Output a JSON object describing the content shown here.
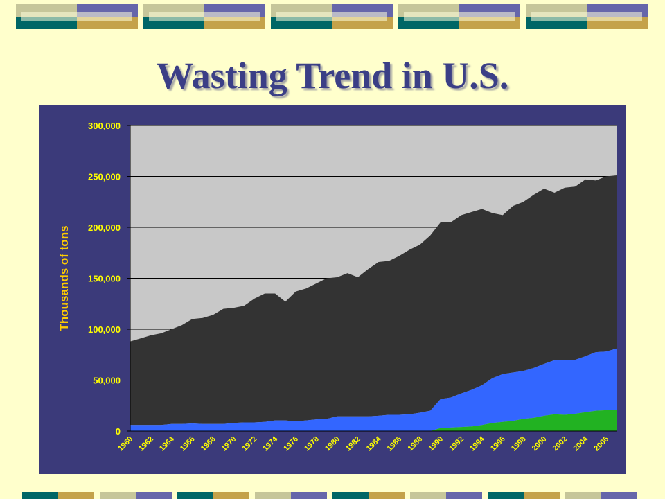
{
  "slide": {
    "title": "Wasting Trend in U.S."
  },
  "colors": {
    "background": "#ffffcc",
    "title": "#3b3f86",
    "panel": "#3b3a7a",
    "plot_area": "#c8c8c8",
    "series_top": "#333333",
    "series_mid": "#3366ff",
    "series_low": "#22b222",
    "tick_text": "#ffff00",
    "axis_label": "#ffcc00"
  },
  "chart_data": {
    "type": "area",
    "stacked": true,
    "title": "",
    "xlabel": "",
    "ylabel": "Thousands of tons",
    "ylim": [
      0,
      300000
    ],
    "yticks": [
      "0",
      "50,000",
      "100,000",
      "150,000",
      "200,000",
      "250,000",
      "300,000"
    ],
    "x": [
      1960,
      1961,
      1962,
      1963,
      1964,
      1965,
      1966,
      1967,
      1968,
      1969,
      1970,
      1971,
      1972,
      1973,
      1974,
      1975,
      1976,
      1977,
      1978,
      1979,
      1980,
      1981,
      1982,
      1983,
      1984,
      1985,
      1986,
      1987,
      1988,
      1989,
      1990,
      1991,
      1992,
      1993,
      1994,
      1995,
      1996,
      1997,
      1998,
      1999,
      2000,
      2001,
      2002,
      2003,
      2004,
      2005,
      2006,
      2007
    ],
    "xticks": [
      "1960",
      "1962",
      "1964",
      "1966",
      "1968",
      "1970",
      "1972",
      "1974",
      "1976",
      "1978",
      "1980",
      "1982",
      "1984",
      "1986",
      "1988",
      "1990",
      "1992",
      "1994",
      "1996",
      "1998",
      "2000",
      "2002",
      "2004",
      "2006"
    ],
    "grid": true,
    "legend": "none",
    "totals": [
      88000,
      91000,
      94000,
      96000,
      100000,
      104000,
      110000,
      111000,
      114000,
      120000,
      121000,
      123000,
      130000,
      135000,
      135000,
      127000,
      137000,
      140000,
      145000,
      150000,
      151000,
      155000,
      151000,
      159000,
      166000,
      167000,
      172000,
      178000,
      183000,
      192000,
      205000,
      205000,
      212000,
      215000,
      218000,
      214000,
      212000,
      221000,
      225000,
      232000,
      238000,
      234000,
      239000,
      240000,
      247000,
      246000,
      250000,
      251000
    ],
    "series": [
      {
        "values": [
          0,
          0,
          0,
          0,
          0,
          0,
          0,
          0,
          0,
          0,
          0,
          0,
          0,
          0,
          0,
          0,
          0,
          0,
          0,
          0,
          0,
          0,
          0,
          0,
          0,
          0,
          0,
          0,
          0,
          0,
          3000,
          3500,
          4000,
          4500,
          6000,
          8000,
          9000,
          10000,
          12000,
          13000,
          15000,
          16500,
          16000,
          17000,
          18500,
          20000,
          20500,
          20500
        ]
      },
      {
        "values": [
          6000,
          6000,
          6000,
          6000,
          7000,
          7000,
          7500,
          7000,
          7000,
          7000,
          8000,
          8500,
          8500,
          9000,
          10500,
          10500,
          9500,
          10500,
          11500,
          12000,
          14500,
          14500,
          14500,
          14500,
          15000,
          16000,
          16000,
          16500,
          18000,
          20000,
          28500,
          29500,
          33000,
          36000,
          39000,
          44000,
          47000,
          47500,
          47000,
          49000,
          51000,
          53000,
          54000,
          53000,
          55000,
          57500,
          57500,
          60500
        ]
      },
      {
        "values": [
          82000,
          85000,
          88000,
          90000,
          93000,
          97000,
          102500,
          104000,
          107000,
          113000,
          113000,
          114500,
          121500,
          126000,
          124500,
          116500,
          127500,
          129500,
          133500,
          138000,
          136500,
          140500,
          136500,
          144500,
          151000,
          151000,
          156000,
          161500,
          165000,
          172000,
          173500,
          172000,
          175000,
          174500,
          173000,
          162000,
          156000,
          163500,
          166000,
          170000,
          172000,
          164500,
          169000,
          170000,
          173500,
          168500,
          172000,
          170000
        ]
      }
    ]
  }
}
